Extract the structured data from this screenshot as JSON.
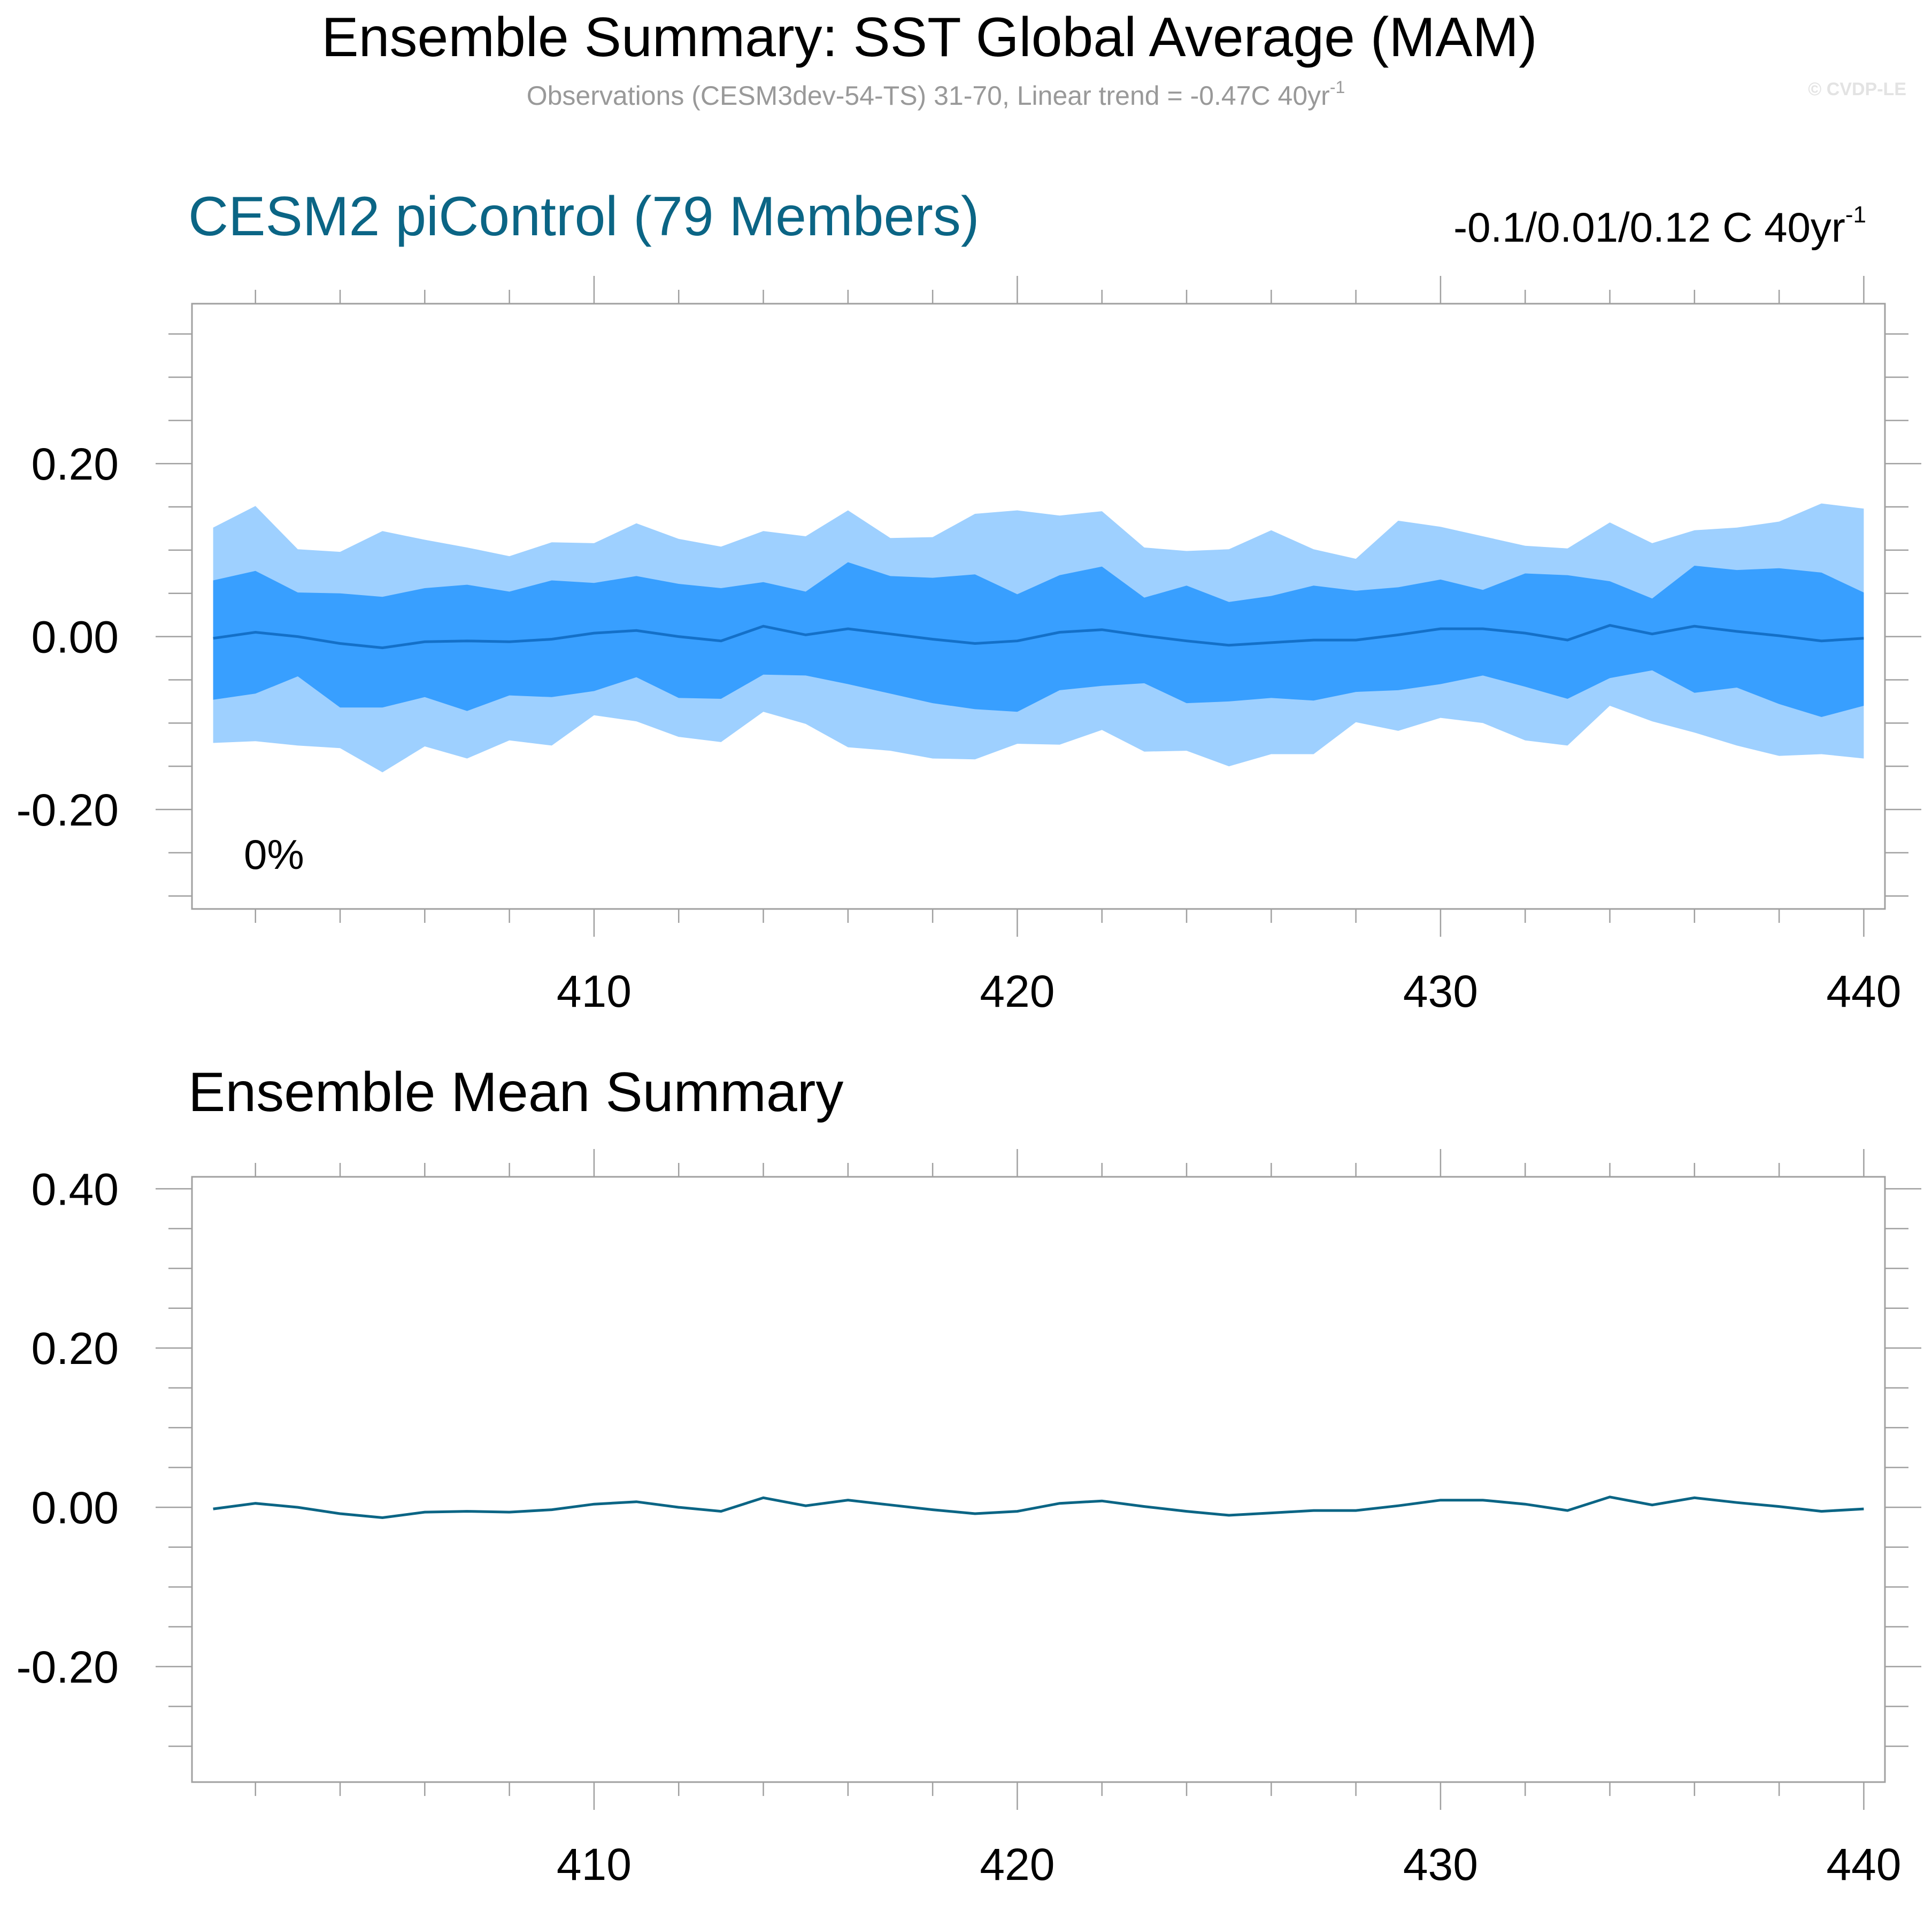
{
  "header": {
    "title": "Ensemble Summary: SST Global Average (MAM)",
    "subtitle_main": "Observations (CESM3dev-54-TS) 31-70, Linear trend = -0.47C 40yr",
    "subtitle_sup": "-1",
    "watermark": "© CVDP-LE"
  },
  "panel1": {
    "title": "CESM2 piControl (79 Members)",
    "trend_main": "-0.1/0.01/0.12 C 40yr",
    "trend_sup": "-1",
    "percent_label": "0%"
  },
  "panel2": {
    "title": "Ensemble Mean Summary"
  },
  "colors": {
    "band_outer": "#9ed0ff",
    "band_inner": "#389fff",
    "median_line": "#1470c8",
    "mean_line": "#0b6585",
    "title_accent": "#0b6585",
    "subtitle_gray": "#999999",
    "frame": "#a0a0a0"
  },
  "chart_data": [
    {
      "type": "area",
      "title": "CESM2 piControl (79 Members)",
      "xlabel": "",
      "ylabel": "",
      "xlim": [
        400.5,
        440.5
      ],
      "ylim": [
        -0.315,
        0.385
      ],
      "y_ticks": [
        -0.2,
        0.0,
        0.2
      ],
      "y_tick_labels": [
        "-0.20",
        "0.00",
        "0.20"
      ],
      "x_ticks": [
        410,
        420,
        430,
        440
      ],
      "x_tick_labels": [
        "410",
        "420",
        "430",
        "440"
      ],
      "x": [
        401,
        402,
        403,
        404,
        405,
        406,
        407,
        408,
        409,
        410,
        411,
        412,
        413,
        414,
        415,
        416,
        417,
        418,
        419,
        420,
        421,
        422,
        423,
        424,
        425,
        426,
        427,
        428,
        429,
        430,
        431,
        432,
        433,
        434,
        435,
        436,
        437,
        438,
        439,
        440
      ],
      "series": [
        {
          "name": "max",
          "values": [
            0.126,
            0.151,
            0.101,
            0.098,
            0.122,
            0.112,
            0.103,
            0.093,
            0.109,
            0.108,
            0.131,
            0.113,
            0.104,
            0.122,
            0.116,
            0.146,
            0.114,
            0.115,
            0.142,
            0.146,
            0.14,
            0.145,
            0.103,
            0.099,
            0.101,
            0.123,
            0.101,
            0.09,
            0.134,
            0.127,
            0.116,
            0.105,
            0.102,
            0.132,
            0.108,
            0.123,
            0.126,
            0.133,
            0.154,
            0.148
          ]
        },
        {
          "name": "p90",
          "values": [
            0.065,
            0.076,
            0.051,
            0.05,
            0.046,
            0.056,
            0.06,
            0.052,
            0.065,
            0.062,
            0.07,
            0.061,
            0.056,
            0.063,
            0.052,
            0.086,
            0.07,
            0.068,
            0.072,
            0.049,
            0.071,
            0.081,
            0.045,
            0.059,
            0.04,
            0.047,
            0.059,
            0.053,
            0.057,
            0.066,
            0.054,
            0.073,
            0.071,
            0.064,
            0.044,
            0.082,
            0.077,
            0.079,
            0.074,
            0.051
          ]
        },
        {
          "name": "median",
          "values": [
            -0.002,
            0.005,
            0.0,
            -0.008,
            -0.013,
            -0.006,
            -0.005,
            -0.006,
            -0.003,
            0.004,
            0.007,
            0.0,
            -0.005,
            0.012,
            0.002,
            0.009,
            0.003,
            -0.003,
            -0.008,
            -0.005,
            0.005,
            0.008,
            0.001,
            -0.005,
            -0.01,
            -0.007,
            -0.004,
            -0.004,
            0.002,
            0.009,
            0.009,
            0.004,
            -0.004,
            0.013,
            0.003,
            0.012,
            0.006,
            0.001,
            -0.005,
            -0.002
          ]
        },
        {
          "name": "p10",
          "values": [
            -0.073,
            -0.066,
            -0.046,
            -0.082,
            -0.082,
            -0.07,
            -0.086,
            -0.068,
            -0.07,
            -0.063,
            -0.047,
            -0.071,
            -0.072,
            -0.044,
            -0.045,
            -0.055,
            -0.066,
            -0.077,
            -0.084,
            -0.087,
            -0.062,
            -0.057,
            -0.054,
            -0.077,
            -0.075,
            -0.071,
            -0.074,
            -0.064,
            -0.062,
            -0.055,
            -0.045,
            -0.058,
            -0.072,
            -0.048,
            -0.039,
            -0.065,
            -0.059,
            -0.078,
            -0.093,
            -0.08
          ]
        },
        {
          "name": "min",
          "values": [
            -0.123,
            -0.121,
            -0.126,
            -0.129,
            -0.157,
            -0.127,
            -0.141,
            -0.12,
            -0.126,
            -0.091,
            -0.098,
            -0.116,
            -0.122,
            -0.087,
            -0.101,
            -0.128,
            -0.132,
            -0.141,
            -0.142,
            -0.124,
            -0.125,
            -0.108,
            -0.133,
            -0.132,
            -0.15,
            -0.136,
            -0.136,
            -0.099,
            -0.109,
            -0.094,
            -0.1,
            -0.12,
            -0.126,
            -0.08,
            -0.098,
            -0.111,
            -0.126,
            -0.138,
            -0.136,
            -0.141
          ]
        }
      ]
    },
    {
      "type": "line",
      "title": "Ensemble Mean Summary",
      "xlabel": "",
      "ylabel": "",
      "xlim": [
        400.5,
        440.5
      ],
      "ylim": [
        -0.345,
        0.415
      ],
      "y_ticks": [
        -0.2,
        0.0,
        0.2,
        0.4
      ],
      "y_tick_labels": [
        "-0.20",
        "0.00",
        "0.20",
        "0.40"
      ],
      "x_ticks": [
        410,
        420,
        430,
        440
      ],
      "x_tick_labels": [
        "410",
        "420",
        "430",
        "440"
      ],
      "x": [
        401,
        402,
        403,
        404,
        405,
        406,
        407,
        408,
        409,
        410,
        411,
        412,
        413,
        414,
        415,
        416,
        417,
        418,
        419,
        420,
        421,
        422,
        423,
        424,
        425,
        426,
        427,
        428,
        429,
        430,
        431,
        432,
        433,
        434,
        435,
        436,
        437,
        438,
        439,
        440
      ],
      "series": [
        {
          "name": "ensemble mean",
          "values": [
            -0.002,
            0.005,
            0.0,
            -0.008,
            -0.013,
            -0.006,
            -0.005,
            -0.006,
            -0.003,
            0.004,
            0.007,
            0.0,
            -0.005,
            0.012,
            0.002,
            0.009,
            0.003,
            -0.003,
            -0.008,
            -0.005,
            0.005,
            0.008,
            0.001,
            -0.005,
            -0.01,
            -0.007,
            -0.004,
            -0.004,
            0.002,
            0.009,
            0.009,
            0.004,
            -0.004,
            0.013,
            0.003,
            0.012,
            0.006,
            0.001,
            -0.005,
            -0.002
          ]
        }
      ]
    }
  ]
}
